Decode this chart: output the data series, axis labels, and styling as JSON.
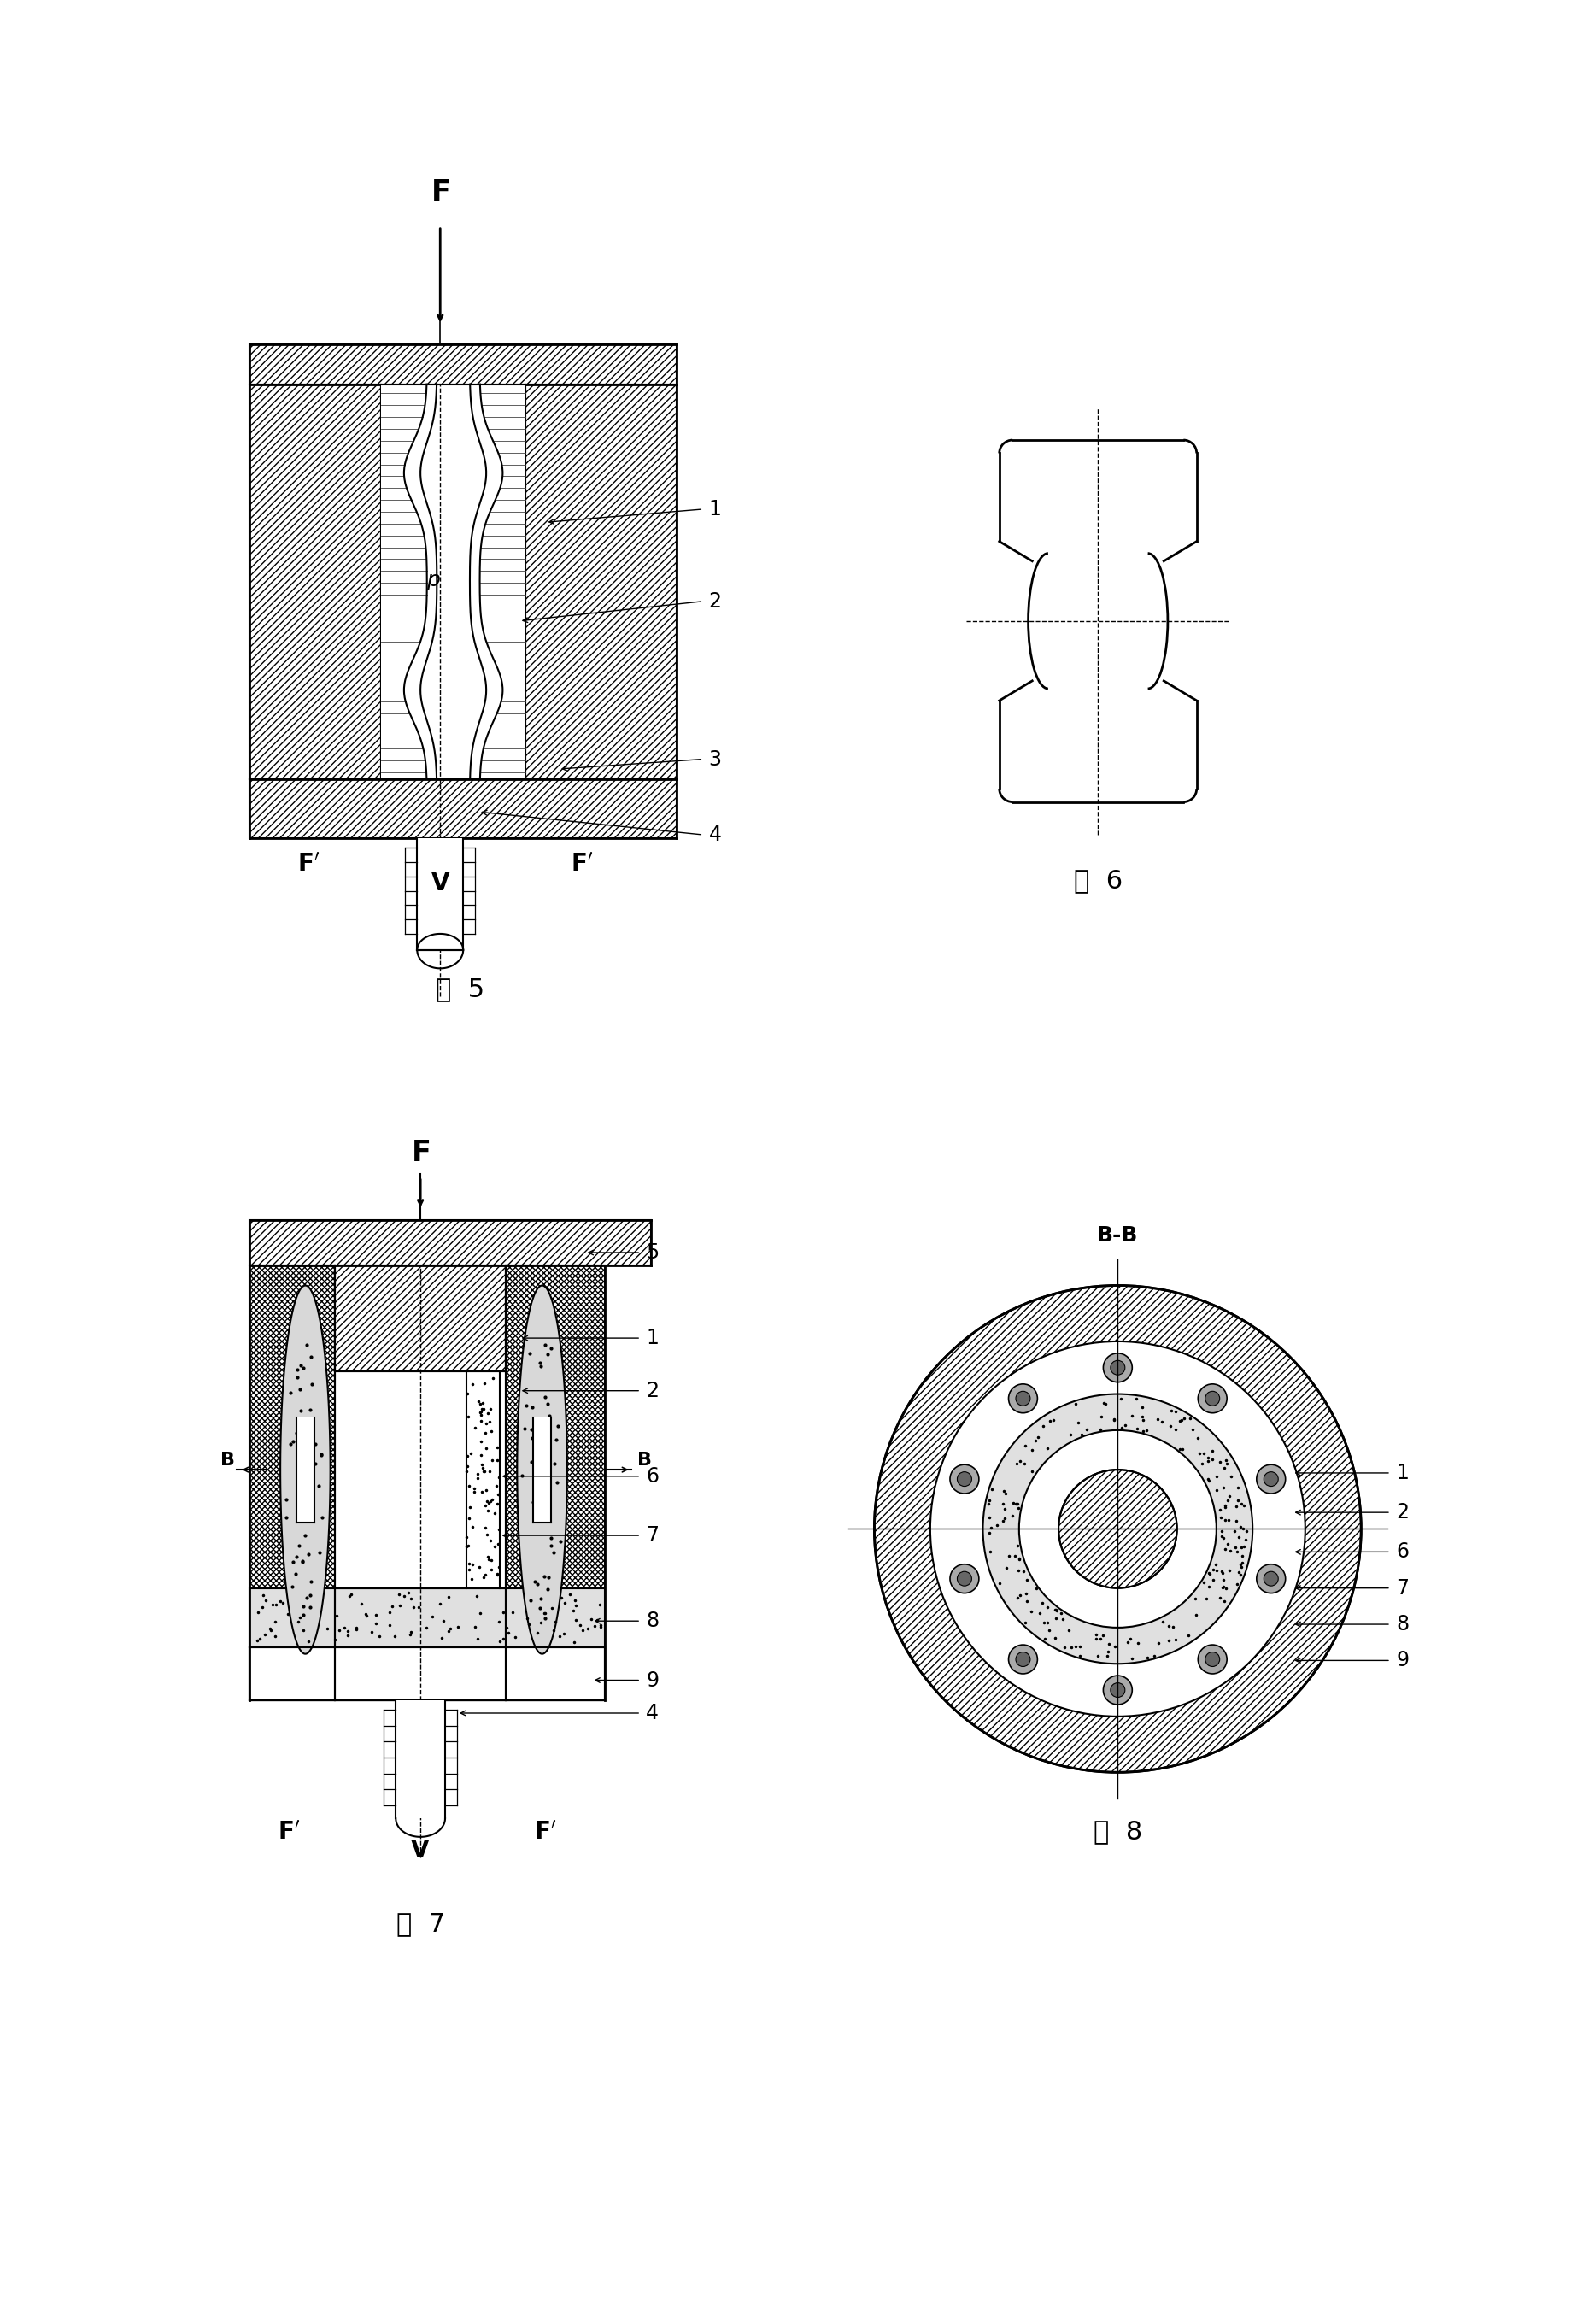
{
  "background_color": "#ffffff",
  "fig5_caption": "图  5",
  "fig6_caption": "图  6",
  "fig7_caption": "图  7",
  "fig8_caption": "图  8",
  "lw": 1.5,
  "lw_thick": 2.0,
  "lw_thin": 0.8
}
